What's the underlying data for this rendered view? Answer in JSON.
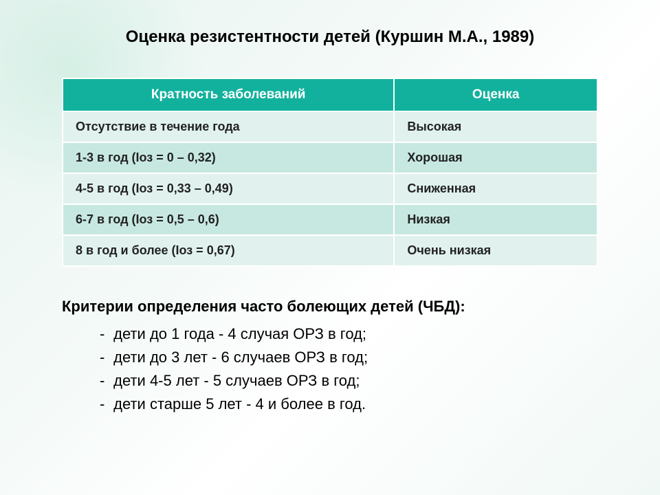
{
  "title": "Оценка резистентности детей (Куршин М.А., 1989)",
  "table": {
    "header_bg": "#12b19d",
    "header_color": "#ffffff",
    "row_odd_bg": "#e1f2ee",
    "row_even_bg": "#c7e8e1",
    "border_color": "#ffffff",
    "columns": [
      "Кратность заболеваний",
      "Оценка"
    ],
    "rows": [
      [
        "Отсутствие в течение года",
        "Высокая"
      ],
      [
        "1-3 в год (Iоз = 0 – 0,32)",
        "Хорошая"
      ],
      [
        "4-5 в год (Iоз = 0,33 – 0,49)",
        "Сниженная"
      ],
      [
        "6-7 в год (Iоз = 0,5 – 0,6)",
        "Низкая"
      ],
      [
        "8 в год и более (Iоз = 0,67)",
        "Очень низкая"
      ]
    ]
  },
  "criteria": {
    "title": "Критерии определения часто болеющих детей (ЧБД):",
    "items": [
      "дети до 1 года   -   4 случая ОРЗ в год;",
      "дети до 3 лет    -   6 случаев ОРЗ в год;",
      "дети 4-5 лет      -   5 случаев ОРЗ в год;",
      "дети старше 5 лет    -   4 и более в год."
    ]
  },
  "style": {
    "title_fontsize": 24,
    "header_fontsize": 19,
    "cell_fontsize": 18,
    "criteria_fontsize": 22,
    "background_gradient": [
      "#e8f4f0",
      "#ffffff"
    ]
  }
}
